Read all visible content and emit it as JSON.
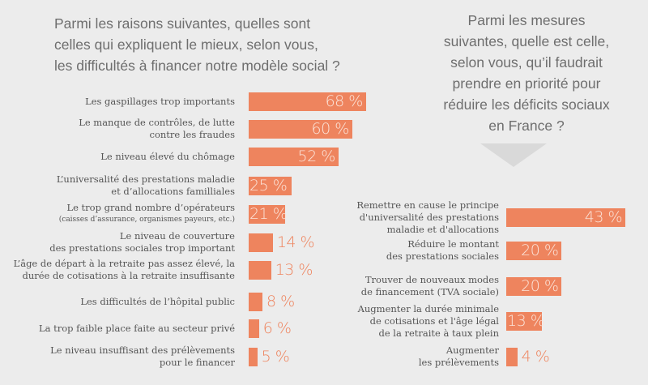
{
  "left_question": {
    "lines": [
      "Parmi les raisons suivantes, quelles sont",
      "celles qui expliquent le mieux, selon vous,",
      "les difficultés à financer notre modèle social ?"
    ]
  },
  "right_question": {
    "lines": [
      "Parmi les mesures",
      "suivantes, quelle est celle,",
      "selon vous, qu’il faudrait",
      "prendre en priorité pour",
      "réduire les déficits sociaux",
      "en France ?"
    ]
  },
  "accent_color": "#ee845e",
  "chart_data": [
    {
      "type": "bar",
      "orientation": "horizontal",
      "title": "Parmi les raisons suivantes, quelles sont celles qui expliquent le mieux, selon vous, les difficultés à financer notre modèle social ?",
      "unit": "%",
      "categories": [
        {
          "lines": [
            "Les gaspillages trop importants"
          ]
        },
        {
          "lines": [
            "Le manque de contrôles, de lutte",
            "contre les fraudes"
          ]
        },
        {
          "lines": [
            "Le niveau élevé du chômage"
          ]
        },
        {
          "lines": [
            "L’universalité des prestations maladie",
            "et d’allocations familliales"
          ]
        },
        {
          "lines": [
            "Le trop grand nombre d’opérateurs"
          ],
          "note": "(caisses d’assurance, organismes payeurs, etc.)"
        },
        {
          "lines": [
            "Le niveau de couverture",
            "des prestations sociales trop important"
          ]
        },
        {
          "lines": [
            "L’âge de départ à la retraite pas assez élevé, la",
            "durée de cotisations à la retraite insuffisante"
          ]
        },
        {
          "lines": [
            "Les difficultés de l’hôpital public"
          ]
        },
        {
          "lines": [
            "La trop faible place faite au secteur privé"
          ]
        },
        {
          "lines": [
            "Le niveau insuffisant des prélèvements",
            "pour le financer"
          ]
        }
      ],
      "values": [
        68,
        60,
        52,
        25,
        21,
        14,
        13,
        8,
        6,
        5
      ],
      "value_labels": [
        "68 %",
        "60 %",
        "52 %",
        "25 %",
        "21 %",
        "14 %",
        "13 %",
        "8 %",
        "6 %",
        "5 %"
      ],
      "xlim": [
        0,
        100
      ]
    },
    {
      "type": "bar",
      "orientation": "horizontal",
      "title": "Parmi les mesures suivantes, quelle est celle, selon vous, qu’il faudrait prendre en priorité pour réduire les déficits sociaux en France ?",
      "unit": "%",
      "categories": [
        {
          "lines": [
            "Remettre en cause le principe",
            "d'universalité des prestations",
            "maladie et d'allocations"
          ]
        },
        {
          "lines": [
            "Réduire le montant",
            "des prestations sociales"
          ]
        },
        {
          "lines": [
            "Trouver de nouveaux modes",
            "de financement (TVA sociale)"
          ]
        },
        {
          "lines": [
            "Augmenter la durée minimale",
            "de cotisations et l'âge légal",
            "de la retraite à taux plein"
          ]
        },
        {
          "lines": [
            "Augmenter",
            "les prélèvements"
          ]
        }
      ],
      "values": [
        43,
        20,
        20,
        13,
        4
      ],
      "value_labels": [
        "43 %",
        "20 %",
        "20 %",
        "13 %",
        "4 %"
      ],
      "xlim": [
        0,
        100
      ]
    }
  ]
}
